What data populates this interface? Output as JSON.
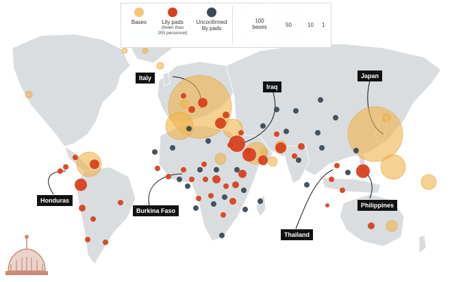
{
  "legend": {
    "bases_label": "Bases",
    "lily_label": "Lily pads",
    "lily_sub_1": "(fewer than",
    "lily_sub_2": "200 personnel)",
    "unconfirmed_label_1": "Unconfirmed",
    "unconfirmed_label_2": "lily pads",
    "size_100_1": "100",
    "size_100_2": "bases",
    "size_50": "50",
    "size_10": "10",
    "size_1": "1"
  },
  "colors": {
    "base": "#f0b44a",
    "lily": "#d9411e",
    "unconfirmed": "#3b4a55",
    "land": "#d9dde0",
    "ocean": "#ffffff"
  },
  "labels": [
    {
      "id": "italy",
      "text": "Italy"
    },
    {
      "id": "iraq",
      "text": "Iraq"
    },
    {
      "id": "japan",
      "text": "Japan"
    },
    {
      "id": "honduras",
      "text": "Honduras"
    },
    {
      "id": "burkina",
      "text": "Burkina Faso"
    },
    {
      "id": "thailand",
      "text": "Thailand"
    },
    {
      "id": "philippines",
      "text": "Philippines"
    }
  ]
}
